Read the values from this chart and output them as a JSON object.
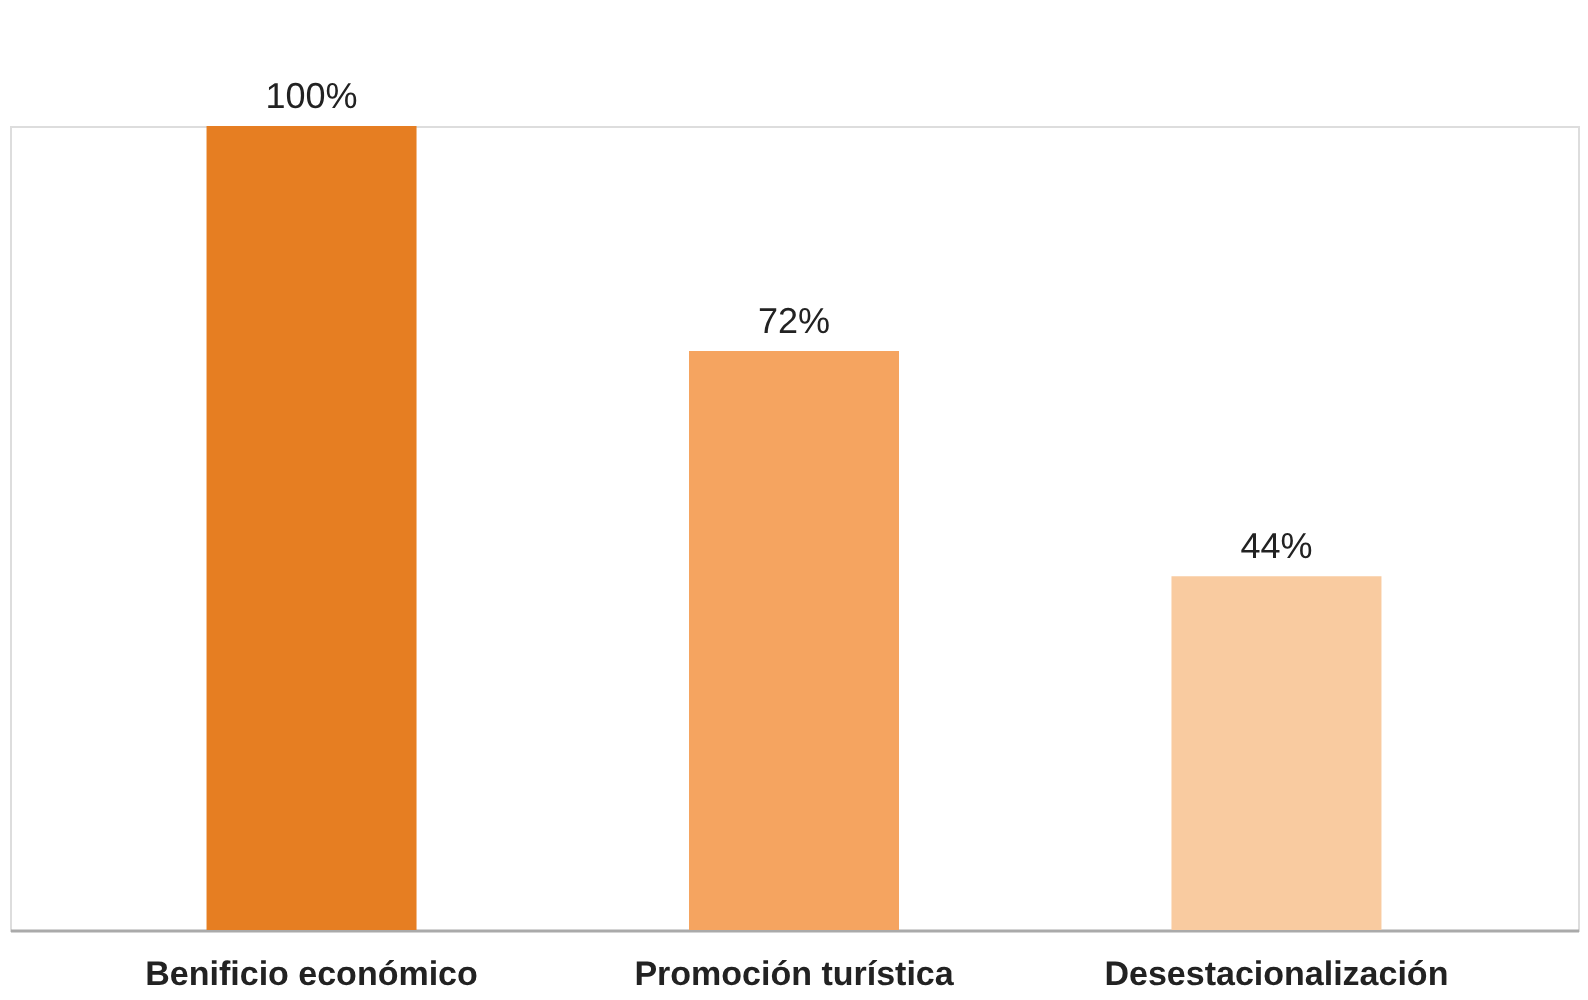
{
  "chart_data": {
    "type": "bar",
    "categories": [
      "Benificio económico",
      "Promoción turística",
      "Desestacionalización"
    ],
    "values": [
      100,
      72,
      44
    ],
    "colors": [
      "#e67e22",
      "#f5a460",
      "#f9cba0"
    ],
    "value_labels": [
      "100%",
      "72%",
      "44%"
    ],
    "grid": false,
    "legend": false
  }
}
